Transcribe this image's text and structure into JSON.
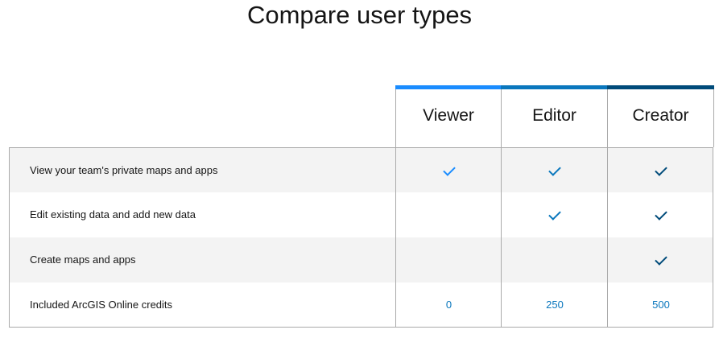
{
  "title": "Compare user types",
  "columns": [
    {
      "label": "Viewer",
      "color": "#1a8cff"
    },
    {
      "label": "Editor",
      "color": "#0a77bd"
    },
    {
      "label": "Creator",
      "color": "#004b7a"
    }
  ],
  "rows": [
    {
      "label": "View your team's private maps and apps",
      "values": [
        true,
        true,
        true
      ]
    },
    {
      "label": "Edit existing data and add new data",
      "values": [
        false,
        true,
        true
      ]
    },
    {
      "label": "Create maps and apps",
      "values": [
        false,
        false,
        true
      ]
    },
    {
      "label": "Included ArcGIS Online credits",
      "values": [
        "0",
        "250",
        "500"
      ]
    }
  ],
  "stripe_color": "#f3f3f3"
}
